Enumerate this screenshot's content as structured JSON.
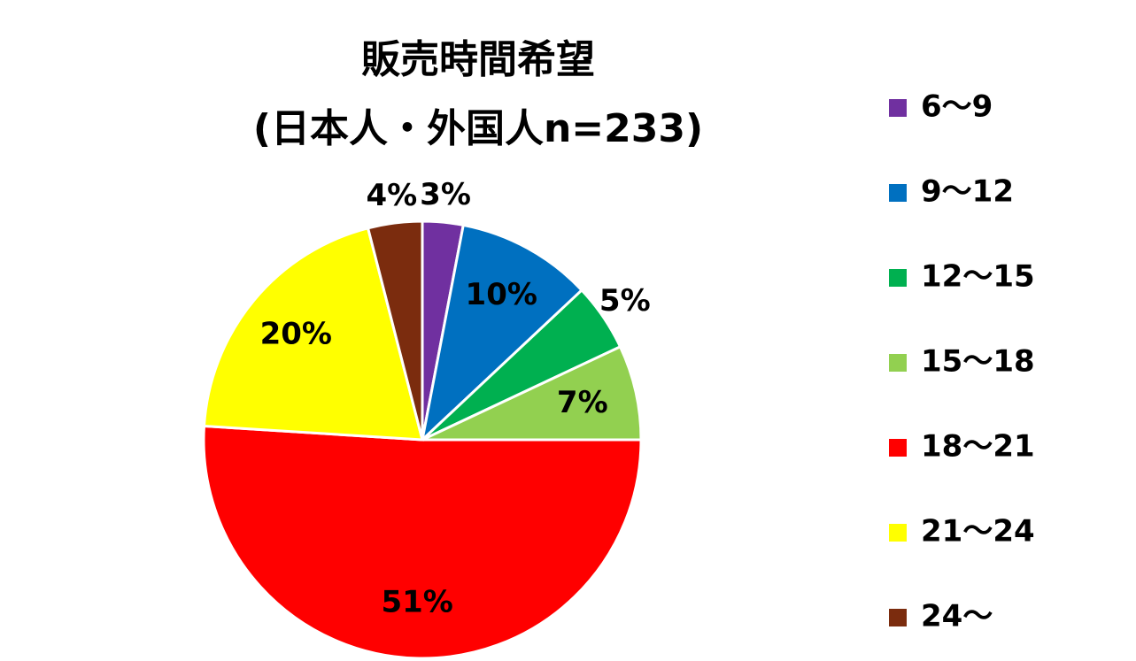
{
  "chart_data": {
    "type": "pie",
    "title": "販売時間希望",
    "subtitle": "(日本人・外国人n=233)",
    "categories": [
      "6〜9",
      "9〜12",
      "12〜15",
      "15〜18",
      "18〜21",
      "21〜24",
      "24〜"
    ],
    "values": [
      3,
      10,
      5,
      7,
      51,
      20,
      4
    ],
    "value_labels": [
      "3%",
      "10%",
      "5%",
      "7%",
      "51%",
      "20%",
      "4%"
    ],
    "colors": [
      "#7030a0",
      "#0070c0",
      "#00b050",
      "#92d050",
      "#ff0000",
      "#ffff00",
      "#7b2c0e"
    ],
    "legend": "right"
  }
}
